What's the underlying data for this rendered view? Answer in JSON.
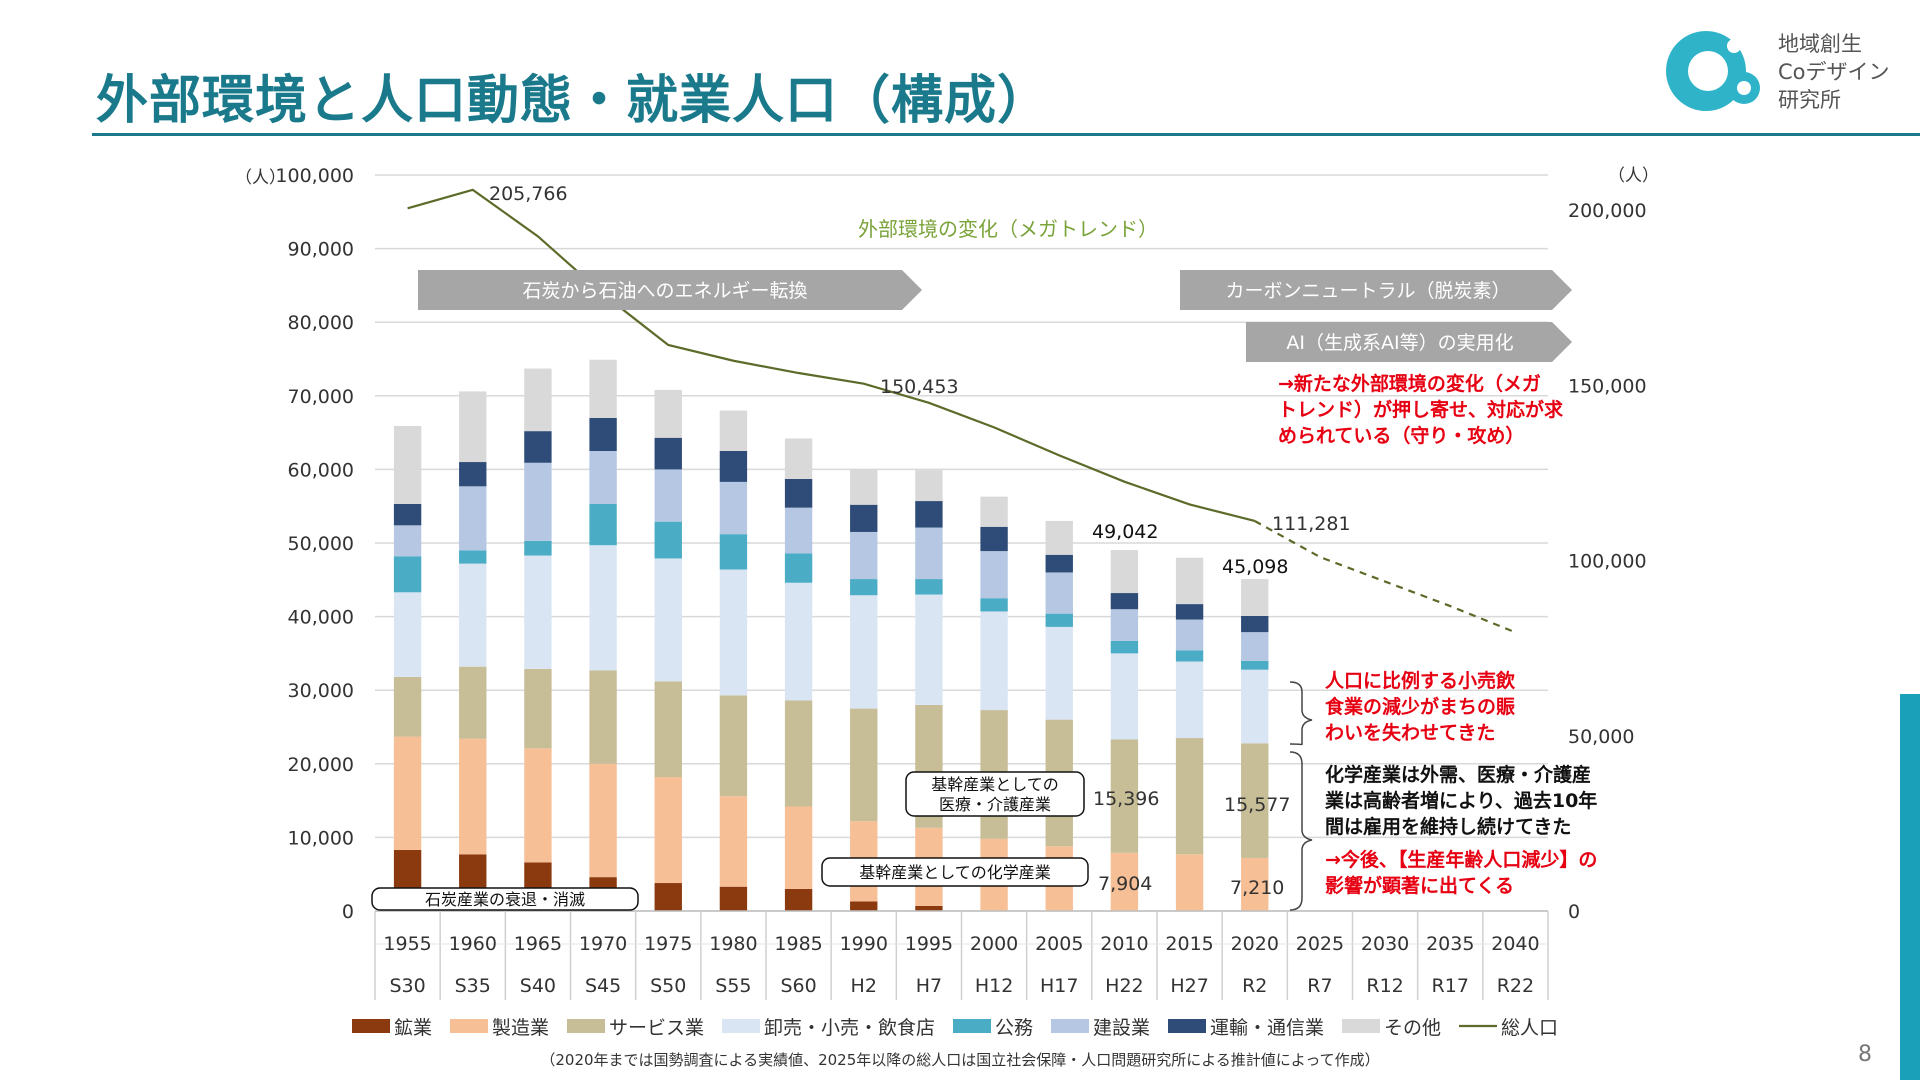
{
  "header": {
    "title": "外部環境と人口動態・就業人口（構成）",
    "logo_text": [
      "地域創生",
      "Coデザイン",
      "研究所"
    ],
    "page_number": "8"
  },
  "colors": {
    "title": "#1a7a8c",
    "mining": "#8b3a0f",
    "manufacturing": "#f7bf95",
    "service": "#c7bd96",
    "retail": "#dae5f4",
    "public": "#4aacc5",
    "construction": "#b5c7e3",
    "transport": "#2f4c78",
    "other": "#d9d9d9",
    "population_line": "#5c6b2a",
    "arrow_gray": "#a6a6a6",
    "note_red": "#e60012"
  },
  "chart_data": {
    "type": "bar",
    "stacked": true,
    "y_unit_left": "（人）",
    "y_unit_right": "（人）",
    "ylim_left": [
      0,
      100000
    ],
    "ylim_right": [
      0,
      210000
    ],
    "yticks_left": [
      "0",
      "10,000",
      "20,000",
      "30,000",
      "40,000",
      "50,000",
      "60,000",
      "70,000",
      "80,000",
      "90,000",
      "100,000"
    ],
    "yticks_right": [
      "0",
      "50,000",
      "100,000",
      "150,000",
      "200,000"
    ],
    "categories": [
      "1955",
      "1960",
      "1965",
      "1970",
      "1975",
      "1980",
      "1985",
      "1990",
      "1995",
      "2000",
      "2005",
      "2010",
      "2015",
      "2020",
      "2025",
      "2030",
      "2035",
      "2040"
    ],
    "categories_era": [
      "S30",
      "S35",
      "S40",
      "S45",
      "S50",
      "S55",
      "S60",
      "H2",
      "H7",
      "H12",
      "H17",
      "H22",
      "H27",
      "R2",
      "R7",
      "R12",
      "R17",
      "R22"
    ],
    "series": [
      {
        "name": "鉱業",
        "color": "#8b3a0f",
        "values": [
          8300,
          7700,
          6600,
          4600,
          3800,
          3300,
          3000,
          1300,
          700,
          0,
          0,
          0,
          0,
          0,
          null,
          null,
          null,
          null
        ]
      },
      {
        "name": "製造業",
        "color": "#f7bf95",
        "values": [
          15400,
          15700,
          15500,
          15400,
          14400,
          12300,
          11200,
          10900,
          10600,
          9800,
          8800,
          7904,
          7700,
          7210,
          null,
          null,
          null,
          null
        ]
      },
      {
        "name": "サービス業",
        "color": "#c7bd96",
        "values": [
          8100,
          9800,
          10800,
          12700,
          13000,
          13700,
          14400,
          15300,
          16700,
          17500,
          17200,
          15396,
          15800,
          15577,
          null,
          null,
          null,
          null
        ]
      },
      {
        "name": "卸売・小売・飲食店",
        "color": "#dae5f4",
        "values": [
          11500,
          14000,
          15400,
          17000,
          16700,
          17100,
          16000,
          15400,
          15000,
          13400,
          12600,
          11700,
          10400,
          10000,
          null,
          null,
          null,
          null
        ]
      },
      {
        "name": "公務",
        "color": "#4aacc5",
        "values": [
          4900,
          1800,
          2000,
          5600,
          5000,
          4800,
          4000,
          2200,
          2100,
          1800,
          1800,
          1700,
          1500,
          1200,
          null,
          null,
          null,
          null
        ]
      },
      {
        "name": "建設業",
        "color": "#b5c7e3",
        "values": [
          4200,
          8700,
          10600,
          7200,
          7100,
          7100,
          6200,
          6400,
          7000,
          6400,
          5600,
          4300,
          4200,
          3900,
          null,
          null,
          null,
          null
        ]
      },
      {
        "name": "運輸・通信業",
        "color": "#2f4c78",
        "values": [
          2900,
          3300,
          4300,
          4500,
          4300,
          4200,
          3900,
          3700,
          3600,
          3300,
          2400,
          2200,
          2100,
          2200,
          null,
          null,
          null,
          null
        ]
      },
      {
        "name": "その他",
        "color": "#d9d9d9",
        "values": [
          10600,
          9600,
          8500,
          7900,
          6500,
          5500,
          5500,
          4800,
          4200,
          4100,
          4600,
          5842,
          6300,
          5011,
          null,
          null,
          null,
          null
        ]
      }
    ],
    "population": {
      "name": "総人口",
      "color": "#5c6b2a",
      "actual_values": [
        200500,
        205766,
        192500,
        176000,
        161500,
        157000,
        153500,
        150453,
        145000,
        138000,
        130000,
        122500,
        116000,
        111281
      ],
      "projected_values": [
        111281,
        101000,
        94000,
        87000,
        79500
      ],
      "projected_categories": [
        "2020",
        "2025",
        "2030",
        "2035",
        "2040"
      ]
    },
    "data_labels": {
      "pop_1960": "205,766",
      "pop_1990": "150,453",
      "pop_2020": "111,281",
      "total_2010": "49,042",
      "total_2020": "45,098",
      "service_2010": "15,396",
      "service_2020": "15,577",
      "manufacturing_2010": "7,904",
      "manufacturing_2020": "7,210"
    },
    "annotations": {
      "megatrend": "外部環境の変化（メガトレンド）",
      "arrow_energy": "石炭から石油へのエネルギー転換",
      "arrow_carbon": "カーボンニュートラル（脱炭素）",
      "arrow_ai": "AI（生成系AI等）の実用化",
      "red_note_1": [
        "→新たな外部環境の変化（メガ",
        "トレンド）が押し寄せ、対応が求",
        "められている（守り・攻め）"
      ],
      "red_note_2": [
        "人口に比例する小売飲",
        "食業の減少がまちの賑",
        "わいを失わせてきた"
      ],
      "black_note": [
        "化学産業は外需、医療・介護産",
        "業は高齢者増により、過去10年",
        "間は雇用を維持し続けてきた"
      ],
      "red_note_3": [
        "→今後、【生産年齢人口減少】の",
        "影響が顕著に出てくる"
      ],
      "box_coal": "石炭産業の衰退・消滅",
      "box_medical": [
        "基幹産業としての",
        "医療・介護産業"
      ],
      "box_chemical": "基幹産業としての化学産業"
    },
    "legend": {
      "placement": "bottom",
      "items": [
        "鉱業",
        "製造業",
        "サービス業",
        "卸売・小売・飲食店",
        "公務",
        "建設業",
        "運輸・通信業",
        "その他",
        "総人口"
      ]
    },
    "source_note": "（2020年までは国勢調査による実績値、2025年以降の総人口は国立社会保障・人口問題研究所による推計値によって作成）"
  }
}
